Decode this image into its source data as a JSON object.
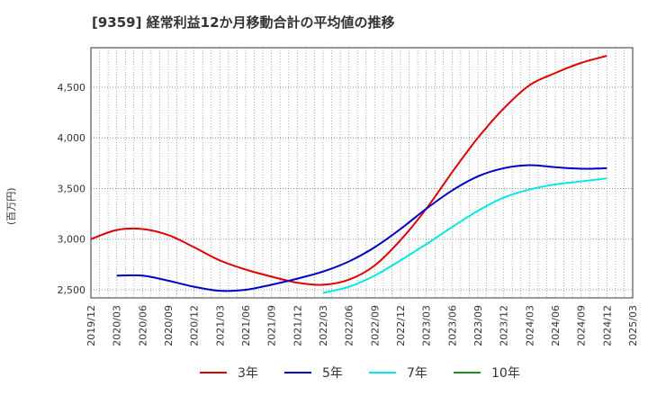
{
  "chart_data": {
    "type": "line",
    "title": "[9359]  経常利益12か月移動合計の平均値の推移",
    "ylabel": "(百万円)",
    "xlabel": "",
    "x_tick_labels": [
      "2019/12",
      "2020/03",
      "2020/06",
      "2020/09",
      "2020/12",
      "2021/03",
      "2021/06",
      "2021/09",
      "2021/12",
      "2022/03",
      "2022/06",
      "2022/09",
      "2022/12",
      "2023/03",
      "2023/06",
      "2023/09",
      "2023/12",
      "2024/03",
      "2024/06",
      "2024/09",
      "2024/12",
      "2025/03"
    ],
    "y_ticks": [
      2500,
      3000,
      3500,
      4000,
      4500
    ],
    "y_tick_labels": [
      "2,500",
      "3,000",
      "3,500",
      "4,000",
      "4,500"
    ],
    "xlim": [
      "2019/12",
      "2025/03"
    ],
    "ylim": [
      2420,
      4890
    ],
    "grid": true,
    "legend_position": "bottom",
    "series": [
      {
        "name": "3年",
        "color": "#e00000",
        "x": [
          "2019/12",
          "2020/03",
          "2020/06",
          "2020/09",
          "2020/12",
          "2021/03",
          "2021/06",
          "2021/09",
          "2021/12",
          "2022/03",
          "2022/06",
          "2022/09",
          "2022/12",
          "2023/03",
          "2023/06",
          "2023/09",
          "2023/12",
          "2024/03",
          "2024/06",
          "2024/09",
          "2024/12"
        ],
        "values": [
          3000,
          3090,
          3100,
          3040,
          2920,
          2790,
          2700,
          2630,
          2570,
          2550,
          2600,
          2740,
          2990,
          3300,
          3660,
          4000,
          4290,
          4520,
          4640,
          4740,
          4810
        ]
      },
      {
        "name": "5年",
        "color": "#0000c8",
        "x": [
          "2020/03",
          "2020/06",
          "2020/09",
          "2020/12",
          "2021/03",
          "2021/06",
          "2021/09",
          "2021/12",
          "2022/03",
          "2022/06",
          "2022/09",
          "2022/12",
          "2023/03",
          "2023/06",
          "2023/09",
          "2023/12",
          "2024/03",
          "2024/06",
          "2024/09",
          "2024/12"
        ],
        "values": [
          2640,
          2640,
          2590,
          2530,
          2490,
          2500,
          2550,
          2610,
          2680,
          2780,
          2920,
          3100,
          3300,
          3480,
          3620,
          3700,
          3730,
          3710,
          3695,
          3700
        ]
      },
      {
        "name": "7年",
        "color": "#00e8e8",
        "x": [
          "2022/03",
          "2022/06",
          "2022/09",
          "2022/12",
          "2023/03",
          "2023/06",
          "2023/09",
          "2023/12",
          "2024/03",
          "2024/06",
          "2024/09",
          "2024/12"
        ],
        "values": [
          2470,
          2530,
          2640,
          2790,
          2950,
          3120,
          3280,
          3410,
          3490,
          3540,
          3570,
          3600
        ]
      },
      {
        "name": "10年",
        "color": "#228b22",
        "x": [],
        "values": []
      }
    ]
  }
}
